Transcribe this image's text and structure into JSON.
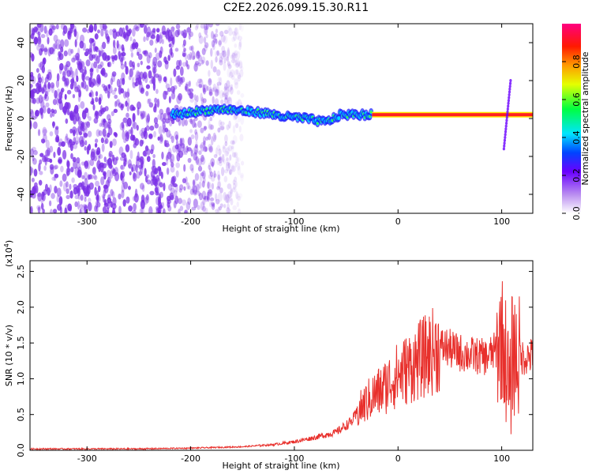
{
  "title": "C2E2.2026.099.15.30.R11",
  "colors": {
    "trace": "#e8302c",
    "cloud": "#7a2ee6",
    "axis": "#000000"
  },
  "chart_data": [
    {
      "type": "heatmap",
      "xlabel": "Height of straight line (km)",
      "ylabel": "Frequency (Hz)",
      "xlim": [
        -355,
        130
      ],
      "ylim": [
        -50,
        50
      ],
      "xticks": [
        -300,
        -200,
        -100,
        0,
        100
      ],
      "yticks": [
        -40,
        -20,
        0,
        20,
        40
      ],
      "colorbar": {
        "label": "Normalized spectral amplitude",
        "range": [
          0,
          1
        ],
        "ticks": [
          "0.0",
          "0.2",
          "0.4",
          "0.6",
          "0.8"
        ],
        "tick_values": [
          0,
          0.2,
          0.4,
          0.6,
          0.8
        ]
      },
      "ridge": [
        {
          "x": -215,
          "y": 2
        },
        {
          "x": -190,
          "y": 4
        },
        {
          "x": -170,
          "y": 5
        },
        {
          "x": -150,
          "y": 4
        },
        {
          "x": -130,
          "y": 3
        },
        {
          "x": -110,
          "y": 1
        },
        {
          "x": -90,
          "y": 0
        },
        {
          "x": -70,
          "y": -2
        },
        {
          "x": -55,
          "y": 2
        },
        {
          "x": -40,
          "y": 2
        },
        {
          "x": -20,
          "y": 2
        },
        {
          "x": 0,
          "y": 2
        },
        {
          "x": 50,
          "y": 2
        },
        {
          "x": 100,
          "y": 2
        },
        {
          "x": 130,
          "y": 2
        }
      ]
    },
    {
      "type": "line",
      "xlabel": "Height of straight line (km)",
      "ylabel": "SNR (10 * v/v)",
      "multiplier": "(x10",
      "multiplier_exp": "4",
      "multiplier_close": ")",
      "xlim": [
        -355,
        130
      ],
      "ylim": [
        0,
        2.65
      ],
      "xticks": [
        -300,
        -200,
        -100,
        0,
        100
      ],
      "yticks": [
        0,
        0.5,
        1.0,
        1.5,
        2.0,
        2.5
      ],
      "ytick_labels": [
        "0.0",
        "0.5",
        "1.0",
        "1.5",
        "2.0",
        "2.5"
      ],
      "series": [
        {
          "x": [
            -355,
            -300,
            -250,
            -200,
            -150,
            -120,
            -100,
            -80,
            -60,
            -45,
            -35,
            -25,
            -15,
            -5,
            5,
            20,
            35,
            45,
            55,
            70,
            85,
            95,
            100,
            105,
            108,
            110,
            115,
            120,
            130
          ],
          "y": [
            0.02,
            0.02,
            0.02,
            0.03,
            0.05,
            0.08,
            0.12,
            0.18,
            0.25,
            0.4,
            0.6,
            0.75,
            0.85,
            1.0,
            1.1,
            1.25,
            1.4,
            1.45,
            1.38,
            1.33,
            1.3,
            1.4,
            1.6,
            1.2,
            0.6,
            1.4,
            1.28,
            1.3,
            1.32
          ]
        }
      ]
    }
  ]
}
